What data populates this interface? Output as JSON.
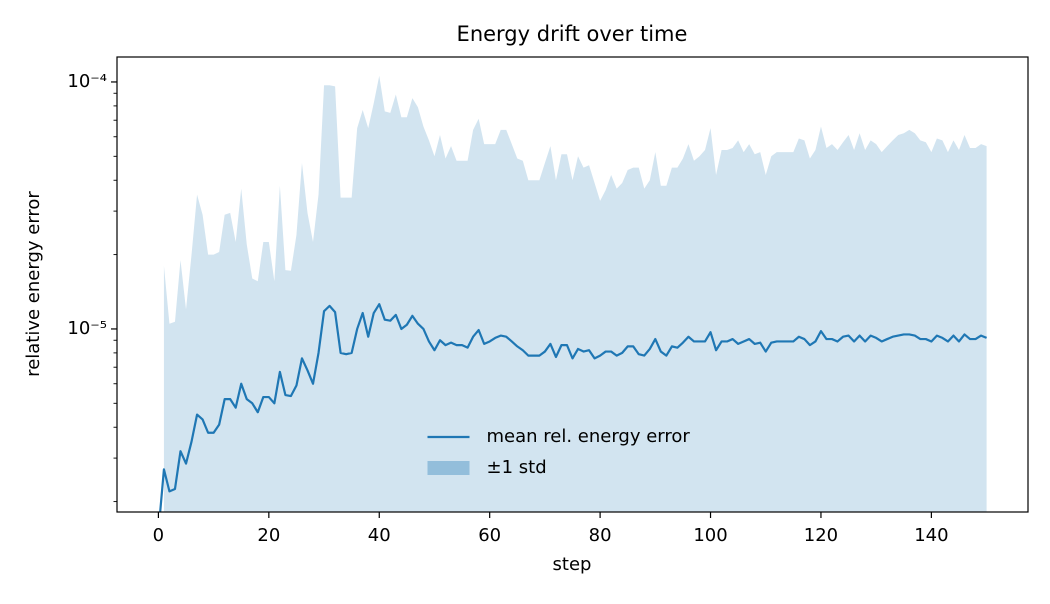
{
  "chart_data": {
    "type": "line",
    "title": "Energy drift over time",
    "xlabel": "step",
    "ylabel": "relative energy error",
    "x": [
      0,
      1,
      2,
      3,
      4,
      5,
      6,
      7,
      8,
      9,
      10,
      11,
      12,
      13,
      14,
      15,
      16,
      17,
      18,
      19,
      20,
      21,
      22,
      23,
      24,
      25,
      26,
      27,
      28,
      29,
      30,
      31,
      32,
      33,
      34,
      35,
      36,
      37,
      38,
      39,
      40,
      41,
      42,
      43,
      44,
      45,
      46,
      47,
      48,
      49,
      50,
      51,
      52,
      53,
      54,
      55,
      56,
      57,
      58,
      59,
      60,
      61,
      62,
      63,
      64,
      65,
      66,
      67,
      68,
      69,
      70,
      71,
      72,
      73,
      74,
      75,
      76,
      77,
      78,
      79,
      80,
      81,
      82,
      83,
      84,
      85,
      86,
      87,
      88,
      89,
      90,
      91,
      92,
      93,
      94,
      95,
      96,
      97,
      98,
      99,
      100,
      101,
      102,
      103,
      104,
      105,
      106,
      107,
      108,
      109,
      110,
      111,
      112,
      113,
      114,
      115,
      116,
      117,
      118,
      119,
      120,
      121,
      122,
      123,
      124,
      125,
      126,
      127,
      128,
      129,
      130,
      131,
      132,
      133,
      134,
      135,
      136,
      137,
      138,
      139,
      140,
      141,
      142,
      143,
      144,
      145,
      146,
      147,
      148,
      149,
      150
    ],
    "series": [
      {
        "name": "mean rel. energy error",
        "kind": "line",
        "color": "#1f77b4",
        "values": [
          0,
          2.7e-06,
          2.2e-06,
          2.25e-06,
          3.2e-06,
          2.85e-06,
          3.5e-06,
          4.5e-06,
          4.3e-06,
          3.8e-06,
          3.8e-06,
          4.1e-06,
          5.2e-06,
          5.2e-06,
          4.8e-06,
          6e-06,
          5.2e-06,
          5e-06,
          4.6e-06,
          5.3e-06,
          5.3e-06,
          5e-06,
          6.7e-06,
          5.4e-06,
          5.35e-06,
          5.9e-06,
          7.6e-06,
          6.8e-06,
          6e-06,
          8e-06,
          1.18e-05,
          1.24e-05,
          1.17e-05,
          8e-06,
          7.9e-06,
          8e-06,
          1e-05,
          1.16e-05,
          9.3e-06,
          1.16e-05,
          1.26e-05,
          1.09e-05,
          1.08e-05,
          1.14e-05,
          1e-05,
          1.04e-05,
          1.13e-05,
          1.05e-05,
          1e-05,
          8.9e-06,
          8.2e-06,
          9e-06,
          8.6e-06,
          8.8e-06,
          8.6e-06,
          8.6e-06,
          8.4e-06,
          9.3e-06,
          9.9e-06,
          8.7e-06,
          8.9e-06,
          9.2e-06,
          9.4e-06,
          9.3e-06,
          8.9e-06,
          8.5e-06,
          8.2e-06,
          7.8e-06,
          7.8e-06,
          7.8e-06,
          8.1e-06,
          8.7e-06,
          7.7e-06,
          8.6e-06,
          8.6e-06,
          7.6e-06,
          8.3e-06,
          8.1e-06,
          8.2e-06,
          7.6e-06,
          7.8e-06,
          8.1e-06,
          8.1e-06,
          7.8e-06,
          8e-06,
          8.5e-06,
          8.5e-06,
          7.9e-06,
          7.8e-06,
          8.3e-06,
          9.1e-06,
          8.1e-06,
          7.8e-06,
          8.5e-06,
          8.4e-06,
          8.8e-06,
          9.3e-06,
          8.9e-06,
          8.9e-06,
          8.9e-06,
          9.7e-06,
          8.2e-06,
          8.9e-06,
          8.9e-06,
          9.1e-06,
          8.7e-06,
          8.9e-06,
          9.1e-06,
          8.7e-06,
          8.8e-06,
          8.1e-06,
          8.8e-06,
          8.9e-06,
          8.9e-06,
          8.9e-06,
          8.9e-06,
          9.3e-06,
          9.1e-06,
          8.6e-06,
          8.9e-06,
          9.8e-06,
          9.1e-06,
          9.1e-06,
          8.9e-06,
          9.3e-06,
          9.4e-06,
          8.9e-06,
          9.4e-06,
          8.9e-06,
          9.4e-06,
          9.2e-06,
          8.9e-06,
          9.1e-06,
          9.3e-06,
          9.4e-06,
          9.5e-06,
          9.5e-06,
          9.4e-06,
          9.1e-06,
          9.1e-06,
          8.9e-06,
          9.4e-06,
          9.2e-06,
          8.9e-06,
          9.4e-06,
          8.9e-06,
          9.5e-06,
          9.1e-06,
          9.1e-06,
          9.4e-06,
          9.2e-06
        ]
      },
      {
        "name": "±1 std",
        "kind": "band",
        "color": "#1f77b4",
        "values": [
          null,
          1.8e-05,
          1.05e-05,
          1.07e-05,
          1.9e-05,
          1.2e-05,
          2e-05,
          3.5e-05,
          2.9e-05,
          2e-05,
          2e-05,
          2.05e-05,
          2.9e-05,
          2.95e-05,
          2.25e-05,
          3.7e-05,
          2.2e-05,
          1.6e-05,
          1.56e-05,
          2.25e-05,
          2.25e-05,
          1.56e-05,
          3.8e-05,
          1.73e-05,
          1.72e-05,
          2.4e-05,
          4.7e-05,
          2.95e-05,
          2.25e-05,
          3.5e-05,
          9.7e-05,
          9.7e-05,
          9.6e-05,
          3.4e-05,
          3.4e-05,
          3.4e-05,
          6.5e-05,
          7.7e-05,
          6.5e-05,
          8.2e-05,
          0.000106,
          7.6e-05,
          7.5e-05,
          8.9e-05,
          7.2e-05,
          7.2e-05,
          8.6e-05,
          7.9e-05,
          6.6e-05,
          5.8e-05,
          5e-05,
          6.1e-05,
          4.9e-05,
          5.5e-05,
          4.8e-05,
          4.8e-05,
          4.8e-05,
          6.4e-05,
          7.1e-05,
          5.6e-05,
          5.6e-05,
          5.6e-05,
          6.4e-05,
          6.4e-05,
          5.6e-05,
          4.9e-05,
          4.8e-05,
          4e-05,
          4e-05,
          4e-05,
          4.7e-05,
          5.5e-05,
          4e-05,
          5.1e-05,
          5.1e-05,
          4e-05,
          5e-05,
          4.5e-05,
          4.6e-05,
          3.9e-05,
          3.3e-05,
          3.65e-05,
          4.2e-05,
          3.7e-05,
          3.9e-05,
          4.4e-05,
          4.5e-05,
          4.5e-05,
          3.7e-05,
          4e-05,
          5.2e-05,
          3.8e-05,
          3.8e-05,
          4.5e-05,
          4.5e-05,
          4.9e-05,
          5.6e-05,
          4.8e-05,
          5e-05,
          5.3e-05,
          6.5e-05,
          4.2e-05,
          5.3e-05,
          5.3e-05,
          5.4e-05,
          5.8e-05,
          5.2e-05,
          5.6e-05,
          5.1e-05,
          5.2e-05,
          4.2e-05,
          5e-05,
          5.2e-05,
          5.2e-05,
          5.2e-05,
          5.2e-05,
          5.9e-05,
          5.8e-05,
          4.9e-05,
          5.3e-05,
          6.6e-05,
          5.4e-05,
          5.6e-05,
          5.3e-05,
          5.7e-05,
          6.1e-05,
          5.3e-05,
          6.2e-05,
          5.3e-05,
          5.8e-05,
          5.6e-05,
          5.2e-05,
          5.5e-05,
          5.8e-05,
          6.1e-05,
          6.2e-05,
          6.4e-05,
          6.2e-05,
          5.8e-05,
          5.7e-05,
          5.2e-05,
          5.9e-05,
          5.8e-05,
          5.2e-05,
          5.8e-05,
          5.3e-05,
          6.1e-05,
          5.4e-05,
          5.4e-05,
          5.6e-05,
          5.5e-05
        ]
      }
    ],
    "xlim": [
      -7.5,
      157.5
    ],
    "xticks": [
      0,
      20,
      40,
      60,
      80,
      100,
      120,
      140
    ],
    "ylim": [
      1.815e-06,
      0.0001262
    ],
    "ylog": true,
    "yticks": [
      {
        "value": 1e-05,
        "label": "10⁻⁵"
      },
      {
        "value": 0.0001,
        "label": "10⁻⁴"
      }
    ],
    "yminorticks": [
      2e-06,
      3e-06,
      4e-06,
      5e-06,
      6e-06,
      7e-06,
      8e-06,
      9e-06,
      2e-05,
      3e-05,
      4e-05,
      5e-05,
      6e-05,
      7e-05,
      8e-05,
      9e-05
    ],
    "legend": "lower center",
    "grid": false
  }
}
